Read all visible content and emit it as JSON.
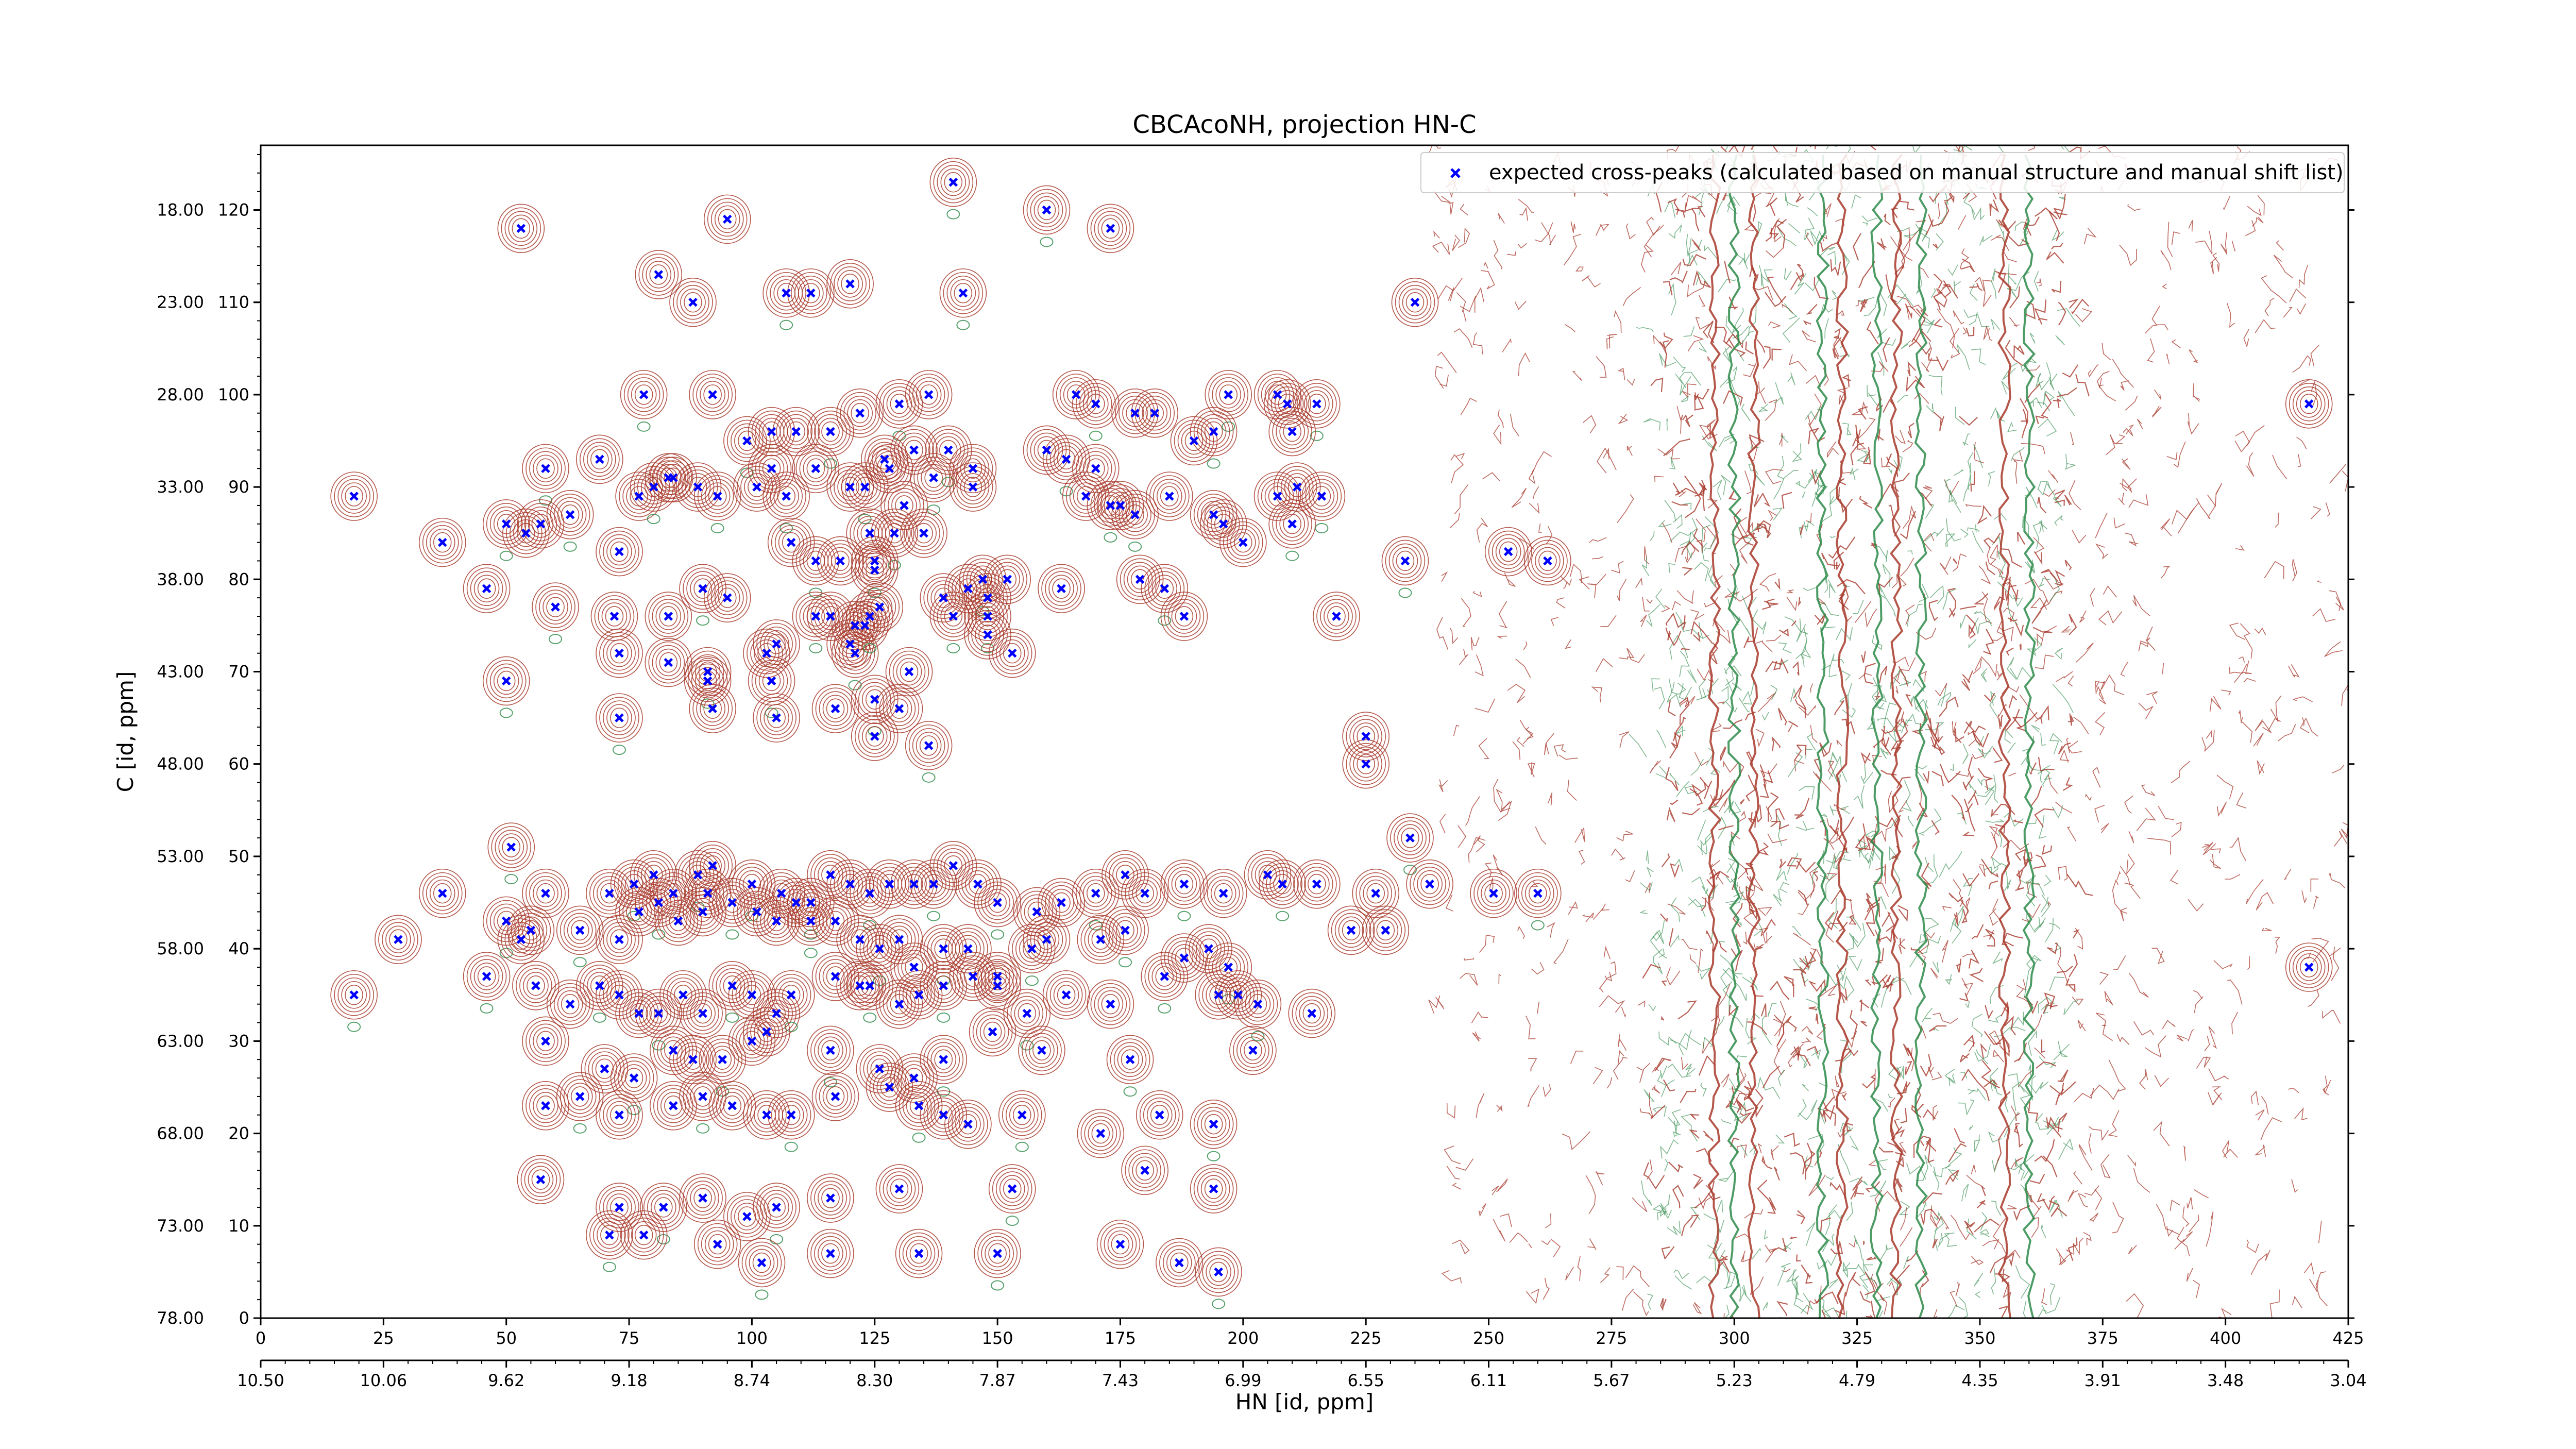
{
  "chart_data": {
    "type": "scatter",
    "title": "CBCAcoNH, projection HN-C",
    "xlabel": "HN [id, ppm]",
    "ylabel": "C [id, ppm]",
    "xlim": [
      0,
      425
    ],
    "ylim": [
      0,
      127
    ],
    "grid": false,
    "legend_placement": "top-right",
    "x_ticks_primary": [
      "0",
      "25",
      "50",
      "75",
      "100",
      "125",
      "150",
      "175",
      "200",
      "225",
      "250",
      "275",
      "300",
      "325",
      "350",
      "375",
      "400",
      "425"
    ],
    "x_ticks_ppm": [
      "10.50",
      "10.06",
      "9.62",
      "9.18",
      "8.74",
      "8.30",
      "7.87",
      "7.43",
      "6.99",
      "6.55",
      "6.11",
      "5.67",
      "5.23",
      "4.79",
      "4.35",
      "3.91",
      "3.48",
      "3.04"
    ],
    "y_ticks_left": [
      "18.00",
      "23.00",
      "28.00",
      "33.00",
      "38.00",
      "43.00",
      "48.00",
      "53.00",
      "58.00",
      "63.00",
      "68.00",
      "73.00",
      "78.00"
    ],
    "y_ticks_inner": [
      "120",
      "110",
      "100",
      "90",
      "80",
      "70",
      "60",
      "50",
      "40",
      "30",
      "20",
      "10",
      "0"
    ],
    "colors": {
      "marker": "#0000ff",
      "contour_positive": "#a83a2c",
      "contour_negative": "#2e8b4a",
      "axes": "#000000"
    },
    "series": [
      {
        "name": "expected cross-peaks (calculated based on manual structure and manual shift list)",
        "marker": "x",
        "points": [
          [
            141,
            123
          ],
          [
            53,
            118
          ],
          [
            95,
            119
          ],
          [
            160,
            120
          ],
          [
            173,
            118
          ],
          [
            81,
            113
          ],
          [
            107,
            111
          ],
          [
            112,
            111
          ],
          [
            120,
            112
          ],
          [
            143,
            111
          ],
          [
            88,
            110
          ],
          [
            235,
            110
          ],
          [
            78,
            100
          ],
          [
            92,
            100
          ],
          [
            122,
            98
          ],
          [
            130,
            99
          ],
          [
            136,
            100
          ],
          [
            166,
            100
          ],
          [
            170,
            99
          ],
          [
            178,
            98
          ],
          [
            182,
            98
          ],
          [
            197,
            100
          ],
          [
            207,
            100
          ],
          [
            209,
            99
          ],
          [
            215,
            99
          ],
          [
            210,
            96
          ],
          [
            417,
            99
          ],
          [
            58,
            92
          ],
          [
            69,
            93
          ],
          [
            83,
            91
          ],
          [
            99,
            95
          ],
          [
            104,
            96
          ],
          [
            109,
            96
          ],
          [
            116,
            96
          ],
          [
            127,
            93
          ],
          [
            133,
            94
          ],
          [
            140,
            94
          ],
          [
            145,
            92
          ],
          [
            160,
            94
          ],
          [
            164,
            93
          ],
          [
            168,
            89
          ],
          [
            170,
            92
          ],
          [
            173,
            88
          ],
          [
            185,
            89
          ],
          [
            190,
            95
          ],
          [
            194,
            96
          ],
          [
            207,
            89
          ],
          [
            211,
            90
          ],
          [
            216,
            89
          ],
          [
            19,
            89
          ],
          [
            37,
            84
          ],
          [
            50,
            86
          ],
          [
            54,
            85
          ],
          [
            57,
            86
          ],
          [
            63,
            87
          ],
          [
            73,
            83
          ],
          [
            77,
            89
          ],
          [
            80,
            90
          ],
          [
            84,
            91
          ],
          [
            89,
            90
          ],
          [
            93,
            89
          ],
          [
            101,
            90
          ],
          [
            104,
            92
          ],
          [
            107,
            89
          ],
          [
            113,
            92
          ],
          [
            120,
            90
          ],
          [
            123,
            90
          ],
          [
            128,
            92
          ],
          [
            131,
            88
          ],
          [
            137,
            91
          ],
          [
            145,
            90
          ],
          [
            175,
            88
          ],
          [
            178,
            87
          ],
          [
            194,
            87
          ],
          [
            196,
            86
          ],
          [
            210,
            86
          ],
          [
            200,
            84
          ],
          [
            46,
            79
          ],
          [
            60,
            77
          ],
          [
            72,
            76
          ],
          [
            83,
            76
          ],
          [
            90,
            79
          ],
          [
            95,
            78
          ],
          [
            108,
            84
          ],
          [
            113,
            82
          ],
          [
            118,
            82
          ],
          [
            124,
            85
          ],
          [
            129,
            85
          ],
          [
            135,
            85
          ],
          [
            125,
            81
          ],
          [
            125,
            82
          ],
          [
            139,
            78
          ],
          [
            144,
            79
          ],
          [
            147,
            80
          ],
          [
            148,
            78
          ],
          [
            152,
            80
          ],
          [
            148,
            76
          ],
          [
            163,
            79
          ],
          [
            179,
            80
          ],
          [
            184,
            79
          ],
          [
            188,
            76
          ],
          [
            219,
            76
          ],
          [
            233,
            82
          ],
          [
            254,
            83
          ],
          [
            262,
            82
          ],
          [
            50,
            69
          ],
          [
            73,
            72
          ],
          [
            83,
            71
          ],
          [
            91,
            70
          ],
          [
            103,
            72
          ],
          [
            105,
            73
          ],
          [
            113,
            76
          ],
          [
            116,
            76
          ],
          [
            120,
            73
          ],
          [
            121,
            72
          ],
          [
            121,
            75
          ],
          [
            123,
            75
          ],
          [
            124,
            76
          ],
          [
            126,
            77
          ],
          [
            132,
            70
          ],
          [
            141,
            76
          ],
          [
            148,
            74
          ],
          [
            153,
            72
          ],
          [
            73,
            65
          ],
          [
            91,
            69
          ],
          [
            92,
            66
          ],
          [
            104,
            69
          ],
          [
            105,
            65
          ],
          [
            117,
            66
          ],
          [
            125,
            67
          ],
          [
            130,
            66
          ],
          [
            125,
            63
          ],
          [
            136,
            62
          ],
          [
            225,
            60
          ],
          [
            225,
            63
          ],
          [
            51,
            51
          ],
          [
            58,
            46
          ],
          [
            71,
            46
          ],
          [
            76,
            47
          ],
          [
            80,
            48
          ],
          [
            84,
            46
          ],
          [
            89,
            48
          ],
          [
            91,
            46
          ],
          [
            92,
            49
          ],
          [
            100,
            47
          ],
          [
            106,
            46
          ],
          [
            109,
            45
          ],
          [
            112,
            45
          ],
          [
            116,
            48
          ],
          [
            120,
            47
          ],
          [
            124,
            46
          ],
          [
            128,
            47
          ],
          [
            133,
            47
          ],
          [
            137,
            47
          ],
          [
            141,
            49
          ],
          [
            146,
            47
          ],
          [
            150,
            45
          ],
          [
            158,
            44
          ],
          [
            163,
            45
          ],
          [
            170,
            46
          ],
          [
            176,
            48
          ],
          [
            180,
            46
          ],
          [
            188,
            47
          ],
          [
            196,
            46
          ],
          [
            205,
            48
          ],
          [
            208,
            47
          ],
          [
            215,
            47
          ],
          [
            227,
            46
          ],
          [
            234,
            52
          ],
          [
            238,
            47
          ],
          [
            251,
            46
          ],
          [
            260,
            46
          ],
          [
            37,
            46
          ],
          [
            28,
            41
          ],
          [
            50,
            43
          ],
          [
            53,
            41
          ],
          [
            55,
            42
          ],
          [
            65,
            42
          ],
          [
            73,
            41
          ],
          [
            77,
            44
          ],
          [
            81,
            45
          ],
          [
            85,
            43
          ],
          [
            90,
            44
          ],
          [
            96,
            45
          ],
          [
            101,
            44
          ],
          [
            105,
            43
          ],
          [
            112,
            43
          ],
          [
            117,
            43
          ],
          [
            122,
            41
          ],
          [
            126,
            40
          ],
          [
            130,
            41
          ],
          [
            133,
            38
          ],
          [
            139,
            40
          ],
          [
            144,
            40
          ],
          [
            150,
            37
          ],
          [
            157,
            40
          ],
          [
            160,
            41
          ],
          [
            171,
            41
          ],
          [
            176,
            42
          ],
          [
            188,
            39
          ],
          [
            193,
            40
          ],
          [
            197,
            38
          ],
          [
            222,
            42
          ],
          [
            229,
            42
          ],
          [
            46,
            37
          ],
          [
            56,
            36
          ],
          [
            63,
            34
          ],
          [
            69,
            36
          ],
          [
            73,
            35
          ],
          [
            77,
            33
          ],
          [
            81,
            33
          ],
          [
            86,
            35
          ],
          [
            90,
            33
          ],
          [
            96,
            36
          ],
          [
            100,
            35
          ],
          [
            105,
            33
          ],
          [
            108,
            35
          ],
          [
            117,
            37
          ],
          [
            122,
            36
          ],
          [
            124,
            36
          ],
          [
            130,
            34
          ],
          [
            134,
            35
          ],
          [
            139,
            36
          ],
          [
            145,
            37
          ],
          [
            150,
            36
          ],
          [
            156,
            33
          ],
          [
            164,
            35
          ],
          [
            173,
            34
          ],
          [
            184,
            37
          ],
          [
            195,
            35
          ],
          [
            199,
            35
          ],
          [
            203,
            34
          ],
          [
            214,
            33
          ],
          [
            417,
            38
          ],
          [
            19,
            35
          ],
          [
            58,
            30
          ],
          [
            70,
            27
          ],
          [
            76,
            26
          ],
          [
            84,
            29
          ],
          [
            88,
            28
          ],
          [
            94,
            28
          ],
          [
            100,
            30
          ],
          [
            103,
            31
          ],
          [
            116,
            29
          ],
          [
            126,
            27
          ],
          [
            133,
            26
          ],
          [
            139,
            28
          ],
          [
            149,
            31
          ],
          [
            159,
            29
          ],
          [
            177,
            28
          ],
          [
            202,
            29
          ],
          [
            58,
            23
          ],
          [
            65,
            24
          ],
          [
            73,
            22
          ],
          [
            84,
            23
          ],
          [
            90,
            24
          ],
          [
            96,
            23
          ],
          [
            103,
            22
          ],
          [
            108,
            22
          ],
          [
            117,
            24
          ],
          [
            128,
            25
          ],
          [
            134,
            23
          ],
          [
            139,
            22
          ],
          [
            144,
            21
          ],
          [
            155,
            22
          ],
          [
            171,
            20
          ],
          [
            183,
            22
          ],
          [
            194,
            21
          ],
          [
            57,
            15
          ],
          [
            73,
            12
          ],
          [
            82,
            12
          ],
          [
            90,
            13
          ],
          [
            99,
            11
          ],
          [
            105,
            12
          ],
          [
            116,
            13
          ],
          [
            130,
            14
          ],
          [
            153,
            14
          ],
          [
            180,
            16
          ],
          [
            194,
            14
          ],
          [
            71,
            9
          ],
          [
            78,
            9
          ],
          [
            93,
            8
          ],
          [
            102,
            6
          ],
          [
            116,
            7
          ],
          [
            134,
            7
          ],
          [
            150,
            7
          ],
          [
            175,
            8
          ],
          [
            187,
            6
          ],
          [
            195,
            5
          ]
        ]
      }
    ]
  }
}
